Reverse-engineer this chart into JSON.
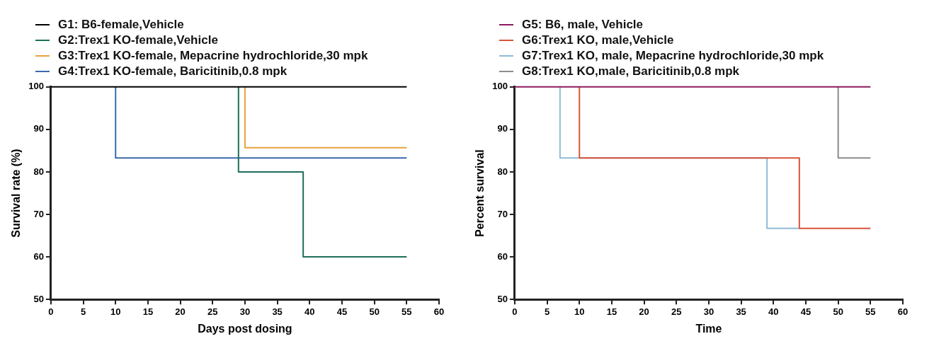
{
  "chart_data": [
    {
      "type": "step",
      "xlabel": "Days post dosing",
      "ylabel": "Survival rate (%)",
      "xlim": [
        0,
        60
      ],
      "xticks": [
        0,
        5,
        10,
        15,
        20,
        25,
        30,
        35,
        40,
        45,
        50,
        55,
        60
      ],
      "ylim": [
        50,
        100
      ],
      "yticks": [
        50,
        60,
        70,
        80,
        90,
        100
      ],
      "grid": false,
      "legend": "top left",
      "marker": "none",
      "series": [
        {
          "name": "G1: B6-female,Vehicle",
          "color": "#000000",
          "x": [
            0,
            55
          ],
          "values": [
            100,
            100
          ]
        },
        {
          "name": "G2:Trex1 KO-female,Vehicle",
          "color": "#1f6e5a",
          "x": [
            29,
            29,
            39,
            55
          ],
          "values": [
            100,
            80,
            60,
            60
          ]
        },
        {
          "name": "G3:Trex1 KO-female, Mepacrine hydrochloride,30 mpk",
          "color": "#e8a33d",
          "x": [
            30,
            30,
            55
          ],
          "values": [
            100,
            85.7,
            85.7
          ]
        },
        {
          "name": "G4:Trex1 KO-female, Baricitinib,0.8 mpk",
          "color": "#3a6aad",
          "x": [
            10,
            10,
            55
          ],
          "values": [
            100,
            83.3,
            83.3
          ]
        }
      ]
    },
    {
      "type": "step",
      "xlabel": "Time",
      "ylabel": "Percent survival",
      "xlim": [
        0,
        60
      ],
      "xticks": [
        0,
        5,
        10,
        15,
        20,
        25,
        30,
        35,
        40,
        45,
        50,
        55,
        60
      ],
      "ylim": [
        50,
        100
      ],
      "yticks": [
        50,
        60,
        70,
        80,
        90,
        100
      ],
      "grid": false,
      "legend": "top left",
      "marker": "none",
      "series": [
        {
          "name": "G5: B6, male, Vehicle",
          "color": "#8b1a5e",
          "x": [
            0,
            55
          ],
          "values": [
            100,
            100
          ]
        },
        {
          "name": "G6:Trex1 KO, male,Vehicle",
          "color": "#d9533a",
          "x": [
            10,
            10,
            44,
            55
          ],
          "values": [
            100,
            83.3,
            66.7,
            66.7
          ]
        },
        {
          "name": "G7:Trex1 KO, male, Mepacrine hydrochloride,30 mpk",
          "color": "#8fbcd6",
          "x": [
            7,
            7,
            39,
            44
          ],
          "values": [
            100,
            83.3,
            66.7,
            66.7
          ]
        },
        {
          "name": "G8:Trex1 KO,male, Baricitinib,0.8 mpk",
          "color": "#8c8c8c",
          "x": [
            50,
            50,
            55
          ],
          "values": [
            100,
            83.3,
            83.3
          ]
        }
      ]
    }
  ]
}
